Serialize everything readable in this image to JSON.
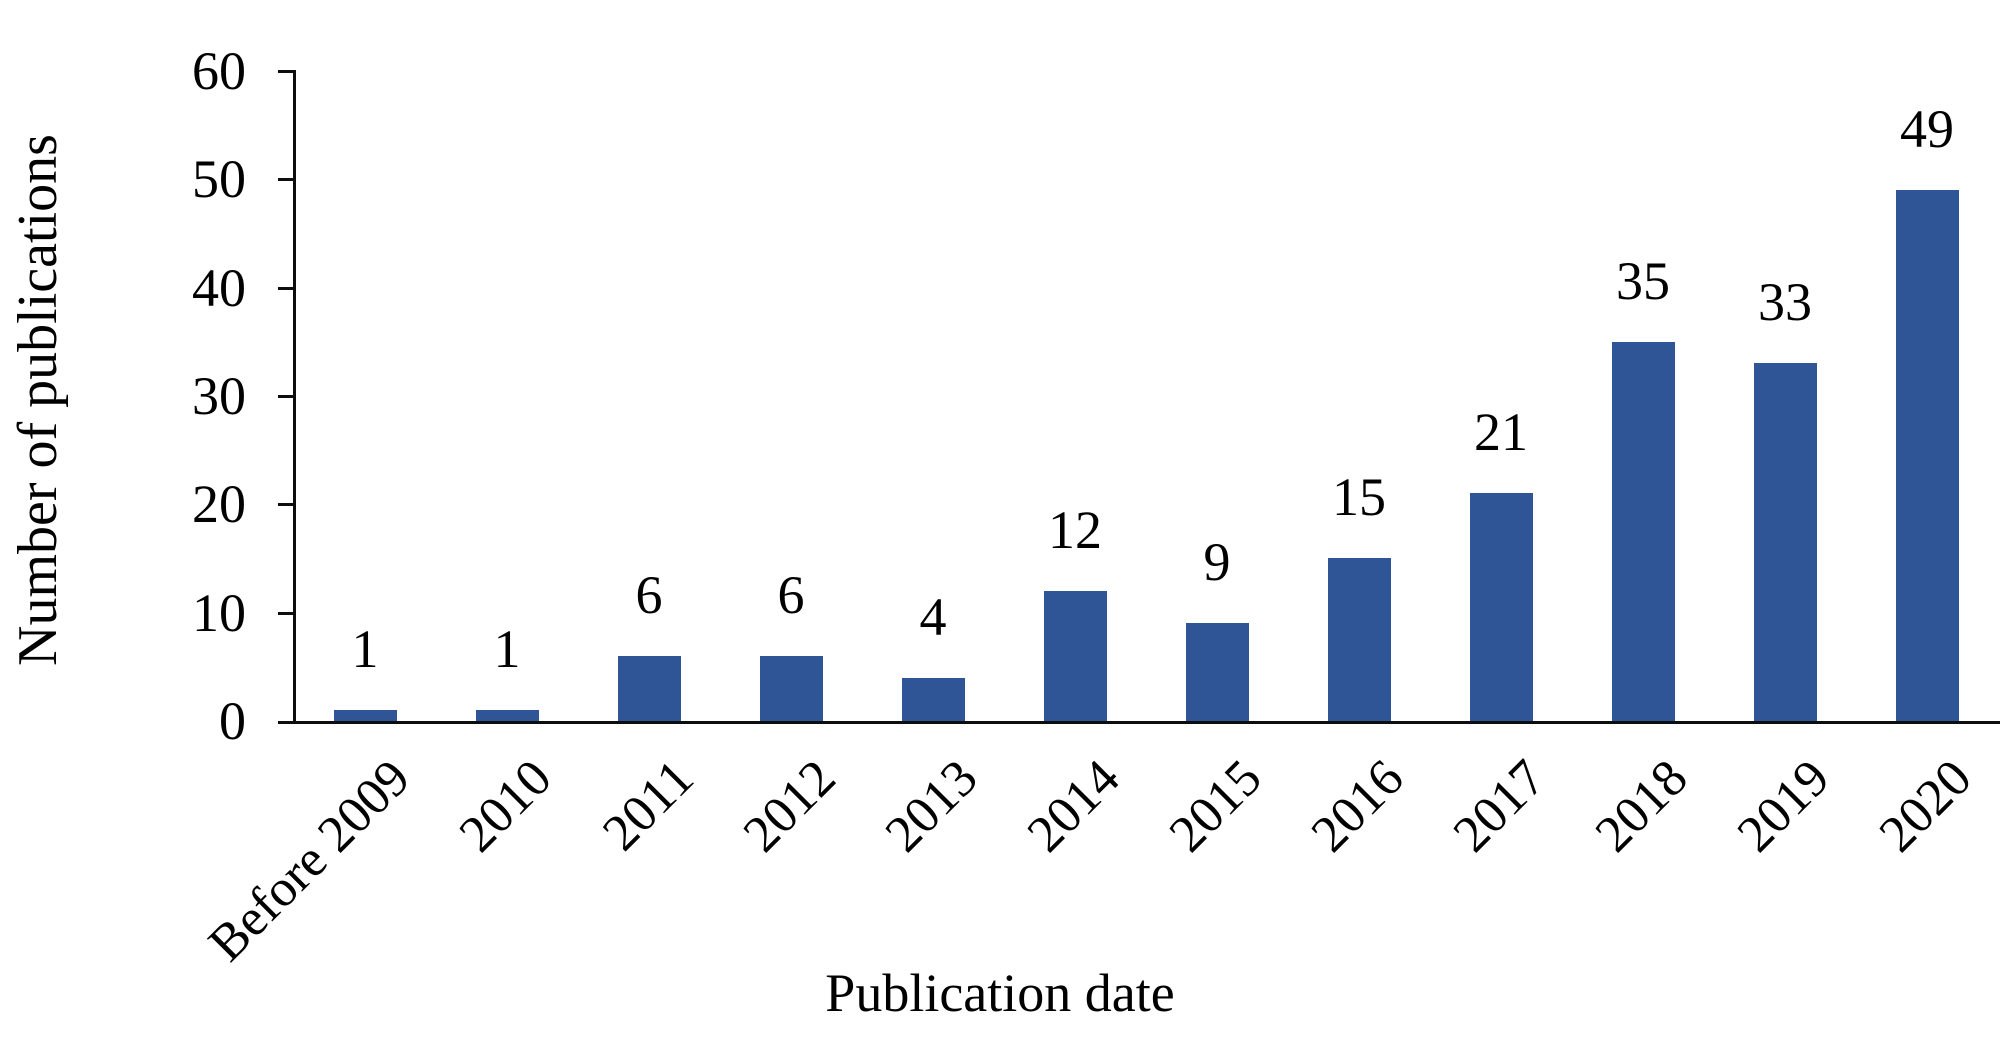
{
  "chart_data": {
    "type": "bar",
    "title": "",
    "xlabel": "Publication date",
    "ylabel": "Number of publications",
    "categories": [
      "Before 2009",
      "2010",
      "2011",
      "2012",
      "2013",
      "2014",
      "2015",
      "2016",
      "2017",
      "2018",
      "2019",
      "2020"
    ],
    "values": [
      1,
      1,
      6,
      6,
      4,
      12,
      9,
      15,
      21,
      35,
      33,
      49
    ],
    "data_labels": [
      "1",
      "1",
      "6",
      "6",
      "4",
      "12",
      "9",
      "15",
      "21",
      "35",
      "33",
      "49"
    ],
    "yticks": [
      0,
      10,
      20,
      30,
      40,
      50,
      60
    ],
    "ylim": [
      0,
      60
    ],
    "grid": false,
    "legend_position": "none",
    "x_label_rotation_deg": -45,
    "bar_color": "#2F5596",
    "axis_color": "#0d0d0d",
    "text_color": "#000000",
    "background_color": "#ffffff"
  }
}
